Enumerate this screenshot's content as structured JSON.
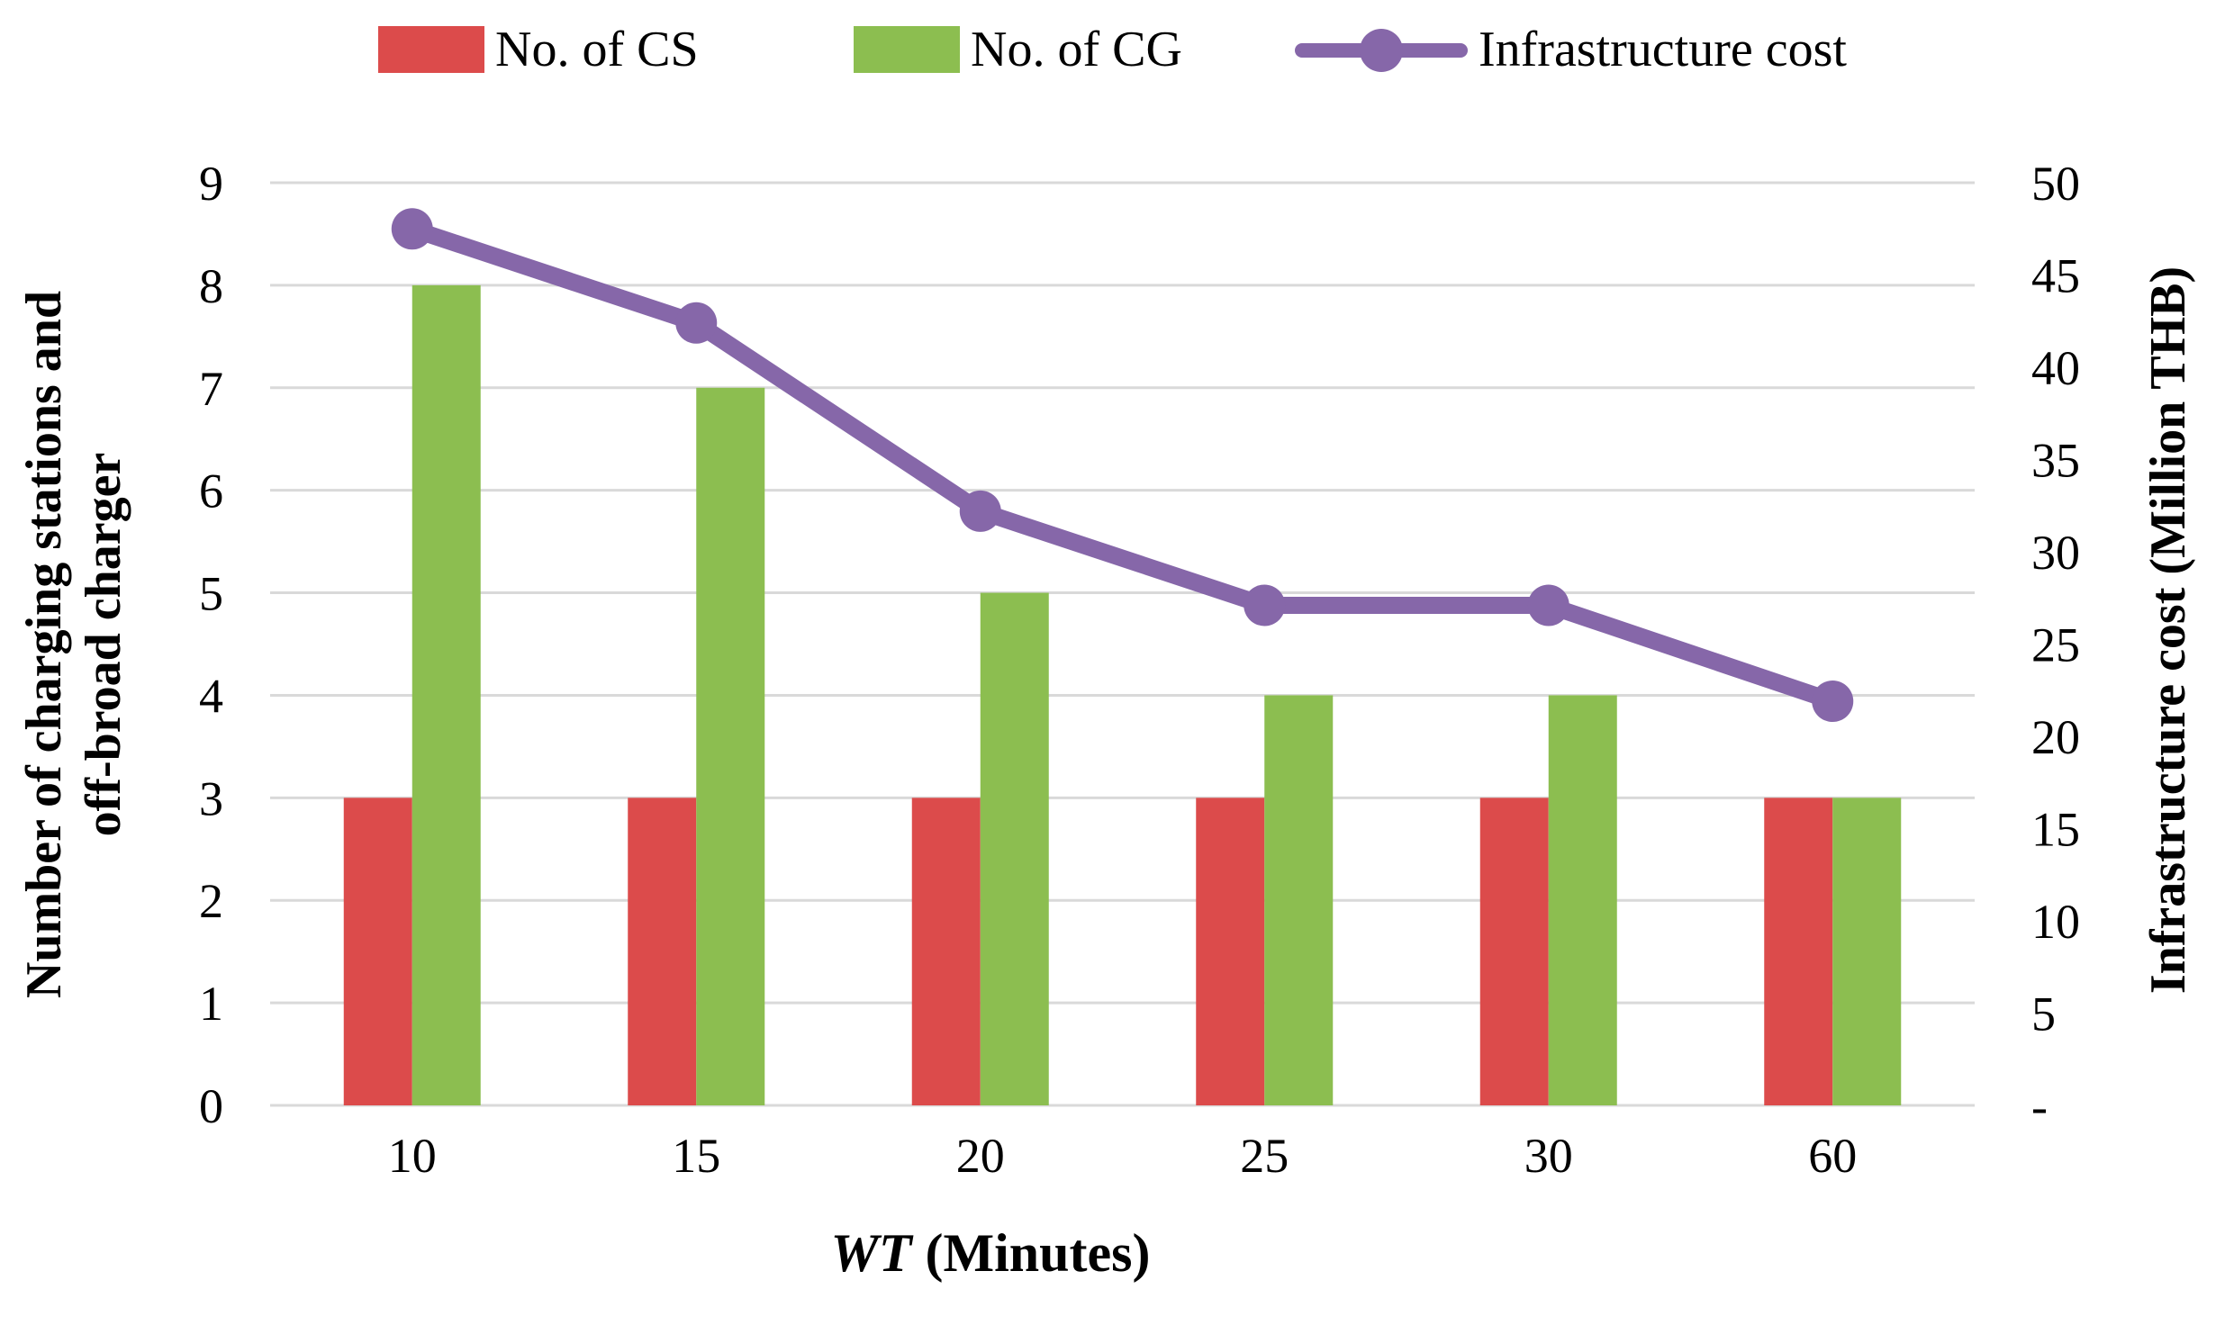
{
  "legend": {
    "items": [
      {
        "label": "No. of CS",
        "marker": "bar-swatch",
        "color": "#DC4B4B"
      },
      {
        "label": "No. of CG",
        "marker": "bar-swatch",
        "color": "#8CBE50"
      },
      {
        "label": "Infrastructure cost",
        "marker": "line-marker",
        "color": "#8667A9"
      }
    ]
  },
  "chart_data": {
    "type": "combo",
    "categories": [
      "10",
      "15",
      "20",
      "25",
      "30",
      "60"
    ],
    "series": [
      {
        "name": "No. of CS",
        "type": "bar",
        "axis": "left",
        "color": "#DC4B4B",
        "values": [
          3,
          3,
          3,
          3,
          3,
          3
        ]
      },
      {
        "name": "No. of CG",
        "type": "bar",
        "axis": "left",
        "color": "#8CBE50",
        "values": [
          8,
          7,
          5,
          4,
          4,
          3
        ]
      },
      {
        "name": "Infrastructure cost",
        "type": "line",
        "axis": "right",
        "color": "#8667A9",
        "values": [
          47.5,
          42.4,
          32.2,
          27.1,
          27.1,
          21.9
        ]
      }
    ],
    "left_axis": {
      "title": "Number of charging stations and off-broad charger",
      "title_lines": [
        "Number of charging stations and",
        "off-broad charger"
      ],
      "min": 0,
      "max": 9,
      "tick_step": 1,
      "tick_labels": [
        "0",
        "1",
        "2",
        "3",
        "4",
        "5",
        "6",
        "7",
        "8",
        "9"
      ]
    },
    "right_axis": {
      "title": "Infrastructure cost (Million THB)",
      "min": 0,
      "max": 50,
      "tick_step": 5,
      "tick_labels": [
        "-",
        "5",
        "10",
        "15",
        "20",
        "25",
        "30",
        "35",
        "40",
        "45",
        "50"
      ]
    },
    "x_axis": {
      "title_italic": "WT",
      "title_rest": " (Minutes)",
      "label": "WT (Minutes)"
    },
    "grid": true,
    "gridline_color": "#D9D9D9",
    "legend_position": "top"
  }
}
